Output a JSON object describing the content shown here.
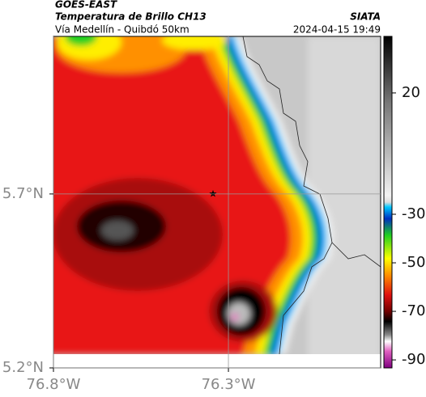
{
  "header": {
    "source": "GOES-EAST",
    "product": "Temperatura de Brillo CH13",
    "route": "Vía Medellín - Quibdó 50km",
    "agency": "SIATA",
    "timestamp": "2024-04-15 19:49"
  },
  "map": {
    "xlim": [
      -76.8,
      -75.865
    ],
    "ylim": [
      5.2,
      6.153
    ],
    "xticks": [
      {
        "value": -76.8,
        "label": "76.8°W"
      },
      {
        "value": -76.3,
        "label": "76.3°W"
      }
    ],
    "yticks": [
      {
        "value": 5.2,
        "label": "5.2°N"
      },
      {
        "value": 5.7,
        "label": "5.7°N"
      }
    ]
  },
  "colorbar": {
    "lim": [
      -93.3,
      43.3
    ],
    "ticks": [
      20,
      -30,
      -50,
      -70,
      -90
    ]
  }
}
